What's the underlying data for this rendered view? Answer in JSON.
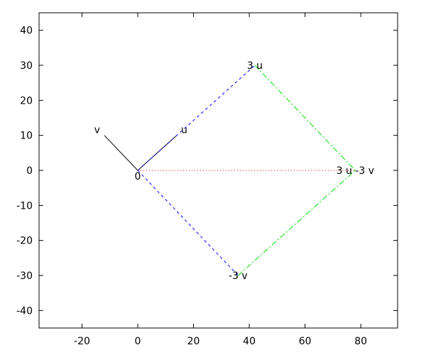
{
  "chart_data": {
    "type": "line",
    "title": "",
    "xlabel": "",
    "ylabel": "",
    "xlim": [
      -35.4,
      93.2
    ],
    "ylim": [
      -45,
      45
    ],
    "xticks": [
      -20,
      0,
      20,
      40,
      60,
      80
    ],
    "yticks": [
      -40,
      -30,
      -20,
      -10,
      0,
      10,
      20,
      30,
      40
    ],
    "grid": false,
    "legend": "none",
    "series": [
      {
        "points": [
          [
            0,
            0
          ],
          [
            14,
            10
          ]
        ],
        "color": "#000000",
        "style": "solid"
      },
      {
        "points": [
          [
            0,
            0
          ],
          [
            -12,
            10
          ]
        ],
        "color": "#000000",
        "style": "solid"
      },
      {
        "points": [
          [
            0,
            0
          ],
          [
            42,
            30
          ]
        ],
        "color": "#0000ff",
        "style": "dashed"
      },
      {
        "points": [
          [
            0,
            0
          ],
          [
            36,
            -30
          ]
        ],
        "color": "#0000ff",
        "style": "dashed"
      },
      {
        "points": [
          [
            0,
            0
          ],
          [
            78,
            0
          ]
        ],
        "color": "#ff0000",
        "style": "dotted"
      },
      {
        "points": [
          [
            42,
            30
          ],
          [
            78,
            0
          ]
        ],
        "color": "#00dd00",
        "style": "dash-dot"
      },
      {
        "points": [
          [
            36,
            -30
          ],
          [
            78,
            0
          ]
        ],
        "color": "#00dd00",
        "style": "dash-dot"
      }
    ],
    "annotations": [
      {
        "text": "0",
        "x": 0,
        "y": 0,
        "anchor": "below-center"
      },
      {
        "text": "u",
        "x": 14,
        "y": 10,
        "anchor": "right"
      },
      {
        "text": "v",
        "x": -12,
        "y": 10,
        "anchor": "left"
      },
      {
        "text": "3 u",
        "x": 42,
        "y": 30,
        "anchor": "center"
      },
      {
        "text": "-3 v",
        "x": 36,
        "y": -30,
        "anchor": "center"
      },
      {
        "text": "3 u -3 v",
        "x": 78,
        "y": 0,
        "anchor": "center"
      }
    ]
  }
}
